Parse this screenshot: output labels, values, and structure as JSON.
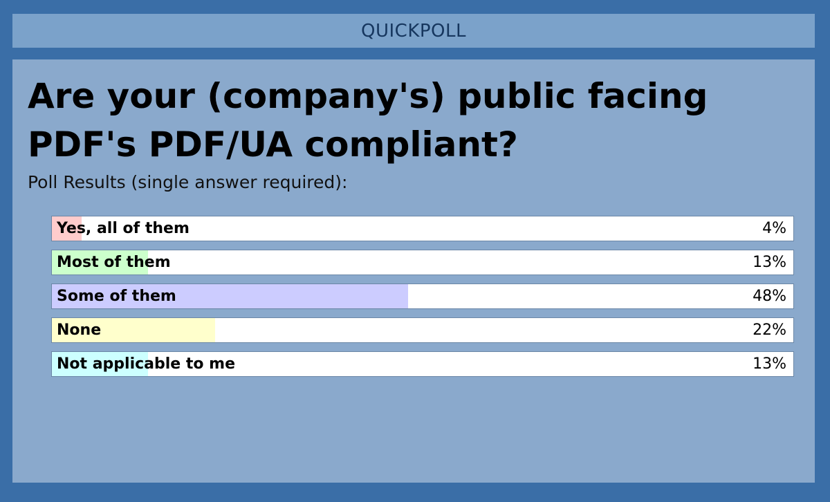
{
  "header": {
    "title": "QUICKPOLL"
  },
  "poll": {
    "question": "Are your (company's) public facing PDF's PDF/UA compliant?",
    "subtitle": "Poll Results (single answer required):",
    "options": [
      {
        "label": "Yes, all of them",
        "percent_text": "4%",
        "percent": 4,
        "color": "#ffcccc"
      },
      {
        "label": "Most of them",
        "percent_text": "13%",
        "percent": 13,
        "color": "#ccffcc"
      },
      {
        "label": "Some of them",
        "percent_text": "48%",
        "percent": 48,
        "color": "#ccccff"
      },
      {
        "label": "None",
        "percent_text": "22%",
        "percent": 22,
        "color": "#ffffcc"
      },
      {
        "label": "Not applicable to me",
        "percent_text": "13%",
        "percent": 13,
        "color": "#ccffff"
      }
    ]
  }
}
